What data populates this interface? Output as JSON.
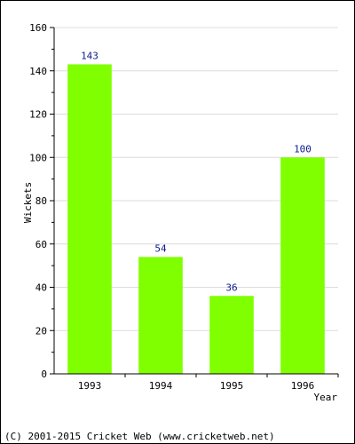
{
  "chart_data": {
    "type": "bar",
    "categories": [
      "1993",
      "1994",
      "1995",
      "1996"
    ],
    "values": [
      143,
      54,
      36,
      100
    ],
    "data_labels": [
      "143",
      "54",
      "36",
      "100"
    ],
    "title": "",
    "xlabel": "Year",
    "ylabel": "Wickets",
    "ylim": [
      0,
      160
    ],
    "yticks": [
      "0",
      "20",
      "40",
      "60",
      "80",
      "100",
      "120",
      "140",
      "160"
    ],
    "grid": true,
    "bar_color": "#7fff00",
    "label_color": "#0b1a8c"
  },
  "footer": "(C) 2001-2015 Cricket Web (www.cricketweb.net)"
}
